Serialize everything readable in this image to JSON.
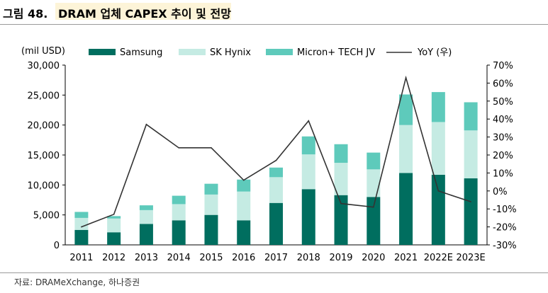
{
  "figure": {
    "label": "그림 48.",
    "title": "DRAM 업체 CAPEX 추이 및 전망",
    "source": "자료: DRAMeXchange, 하나증권"
  },
  "chart_data": {
    "type": "bar",
    "stacked": true,
    "title": "DRAM 업체 CAPEX 추이 및 전망",
    "ylabel": "(mil USD)",
    "y2label": "",
    "ylim": [
      0,
      30000
    ],
    "y2lim": [
      -30,
      70
    ],
    "yticks": [
      "0",
      "5,000",
      "10,000",
      "15,000",
      "20,000",
      "25,000",
      "30,000"
    ],
    "y2ticks": [
      "-30%",
      "-20%",
      "-10%",
      "0%",
      "10%",
      "20%",
      "30%",
      "40%",
      "50%",
      "60%",
      "70%"
    ],
    "categories": [
      "2011",
      "2012",
      "2013",
      "2014",
      "2015",
      "2016",
      "2017",
      "2018",
      "2019",
      "2020",
      "2021",
      "2022E",
      "2023E"
    ],
    "series": [
      {
        "name": "Samsung",
        "type": "bar",
        "axis": "left",
        "color": "#006e5f",
        "values": [
          2500,
          2100,
          3500,
          4100,
          5000,
          4100,
          7000,
          9300,
          8300,
          8000,
          12000,
          11700,
          11100
        ]
      },
      {
        "name": "SK Hynix",
        "type": "bar",
        "axis": "left",
        "color": "#c5ebe3",
        "values": [
          2000,
          2300,
          2300,
          2700,
          3400,
          4800,
          4300,
          5800,
          5400,
          4600,
          8000,
          8800,
          8000
        ]
      },
      {
        "name": "Micron+ TECH JV",
        "type": "bar",
        "axis": "left",
        "color": "#5ecabb",
        "values": [
          1000,
          400,
          800,
          1400,
          1800,
          2000,
          1600,
          3000,
          3100,
          2800,
          5100,
          5000,
          4700
        ]
      },
      {
        "name": "YoY (우)",
        "type": "line",
        "axis": "right",
        "color": "#333333",
        "values": [
          -20,
          -13,
          37,
          24,
          24,
          6,
          17,
          39,
          -7,
          -9,
          63,
          0,
          -6
        ]
      }
    ],
    "legend_position": "top",
    "grid": false
  }
}
